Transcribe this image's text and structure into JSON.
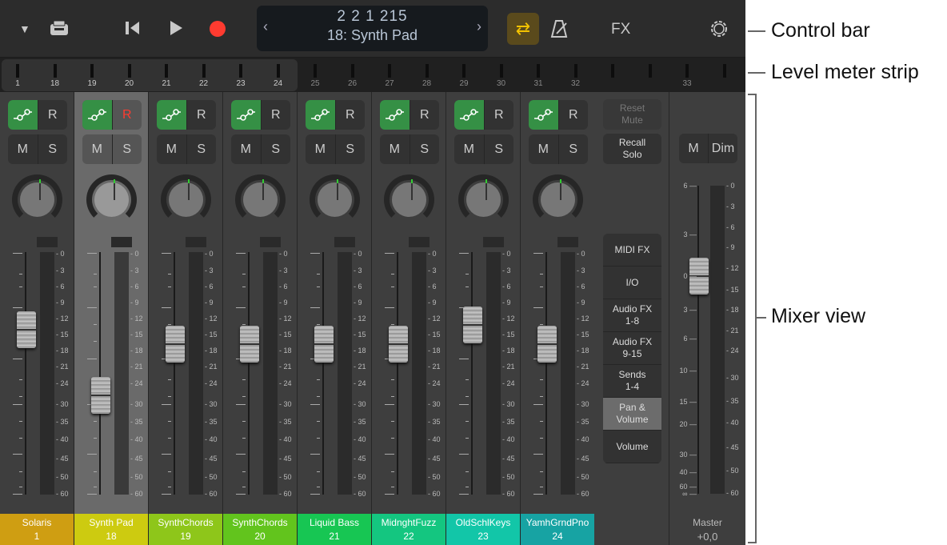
{
  "control_bar": {
    "position": "2  2  1  215",
    "track": "18: Synth Pad",
    "prev": "‹",
    "next": "›",
    "fx_label": "FX",
    "icons": [
      "disclosure-triangle-icon",
      "inbox-tray-icon",
      "go-to-beginning-icon",
      "play-icon",
      "record-icon",
      "cycle-icon",
      "metronome-icon",
      "settings-gear-icon"
    ],
    "record_color": "#ff3b30",
    "cycle_color": "#f2c200"
  },
  "level_meter_strip": {
    "numbers": [
      "1",
      "18",
      "19",
      "20",
      "21",
      "22",
      "23",
      "24",
      "25",
      "26",
      "27",
      "28",
      "29",
      "30",
      "31",
      "32",
      "",
      "",
      "33",
      ""
    ]
  },
  "meter_scale": [
    "0",
    "3",
    "6",
    "9",
    "12",
    "15",
    "18",
    "21",
    "24",
    "30",
    "35",
    "40",
    "45",
    "50",
    "60"
  ],
  "channels": [
    {
      "name": "Solaris",
      "number": "1",
      "color": "#cf9e12",
      "fader": 0.68,
      "automation_label": "R",
      "mute": "M",
      "solo": "S"
    },
    {
      "name": "Synth Pad",
      "number": "18",
      "color": "#cdcb10",
      "fader": 0.41,
      "automation_label": "R",
      "mute": "M",
      "solo": "S",
      "selected": true,
      "record_armed": true
    },
    {
      "name": "SynthChords",
      "number": "19",
      "color": "#8ec61a",
      "fader": 0.62,
      "automation_label": "R",
      "mute": "M",
      "solo": "S"
    },
    {
      "name": "SynthChords",
      "number": "20",
      "color": "#62c41d",
      "fader": 0.62,
      "automation_label": "R",
      "mute": "M",
      "solo": "S"
    },
    {
      "name": "Liquid Bass",
      "number": "21",
      "color": "#17c653",
      "fader": 0.62,
      "automation_label": "R",
      "mute": "M",
      "solo": "S"
    },
    {
      "name": "MidnghtFuzz",
      "number": "22",
      "color": "#14c680",
      "fader": 0.62,
      "automation_label": "R",
      "mute": "M",
      "solo": "S"
    },
    {
      "name": "OldSchlKeys",
      "number": "23",
      "color": "#12c6a8",
      "fader": 0.7,
      "automation_label": "R",
      "mute": "M",
      "solo": "S"
    },
    {
      "name": "YamhGrndPno",
      "number": "24",
      "color": "#17a3a3",
      "fader": 0.62,
      "automation_label": "R",
      "mute": "M",
      "solo": "S"
    }
  ],
  "controls": {
    "reset_mute": "Reset\nMute",
    "recall_solo": "Recall\nSolo",
    "views": [
      "MIDI FX",
      "I/O",
      "Audio FX\n1-8",
      "Audio FX\n9-15",
      "Sends\n1-4",
      "Pan &\nVolume",
      "Volume"
    ],
    "active_view": "Pan &\nVolume"
  },
  "master": {
    "mute": "M",
    "dim": "Dim",
    "name": "Master",
    "value": "+0,0",
    "fader_scale": [
      "6",
      "3",
      "0",
      "3",
      "6",
      "10",
      "15",
      "20",
      "30",
      "40",
      "60",
      "∞"
    ],
    "fader_db": 0
  },
  "annotations": {
    "control_bar": "Control bar",
    "level_meter_strip": "Level meter strip",
    "mixer_view": "Mixer view"
  }
}
